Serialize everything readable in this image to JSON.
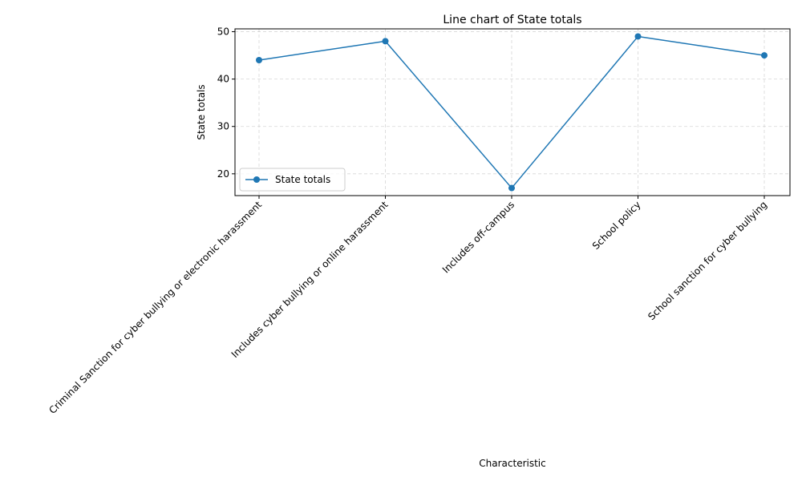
{
  "chart_data": {
    "type": "line",
    "title": "Line chart of State totals",
    "xlabel": "Characteristic",
    "ylabel": "State totals",
    "categories": [
      "Criminal Sanction for cyber bullying or electronic harassment",
      "Includes cyber bullying or online harassment",
      "Includes off-campus",
      "School policy",
      "School sanction for cyber bullying"
    ],
    "series": [
      {
        "name": "State totals",
        "values": [
          44,
          48,
          17,
          49,
          45
        ],
        "color": "#1f77b4",
        "marker": "circle"
      }
    ],
    "ylim": [
      15.4,
      50.6
    ],
    "yticks": [
      20,
      30,
      40,
      50
    ],
    "grid": true,
    "grid_style": "dashed",
    "legend_position": "lower-left"
  }
}
